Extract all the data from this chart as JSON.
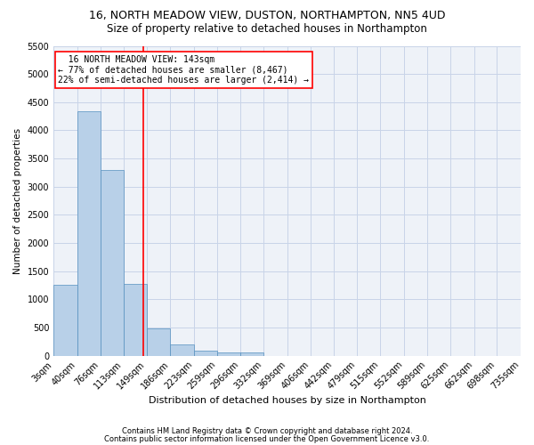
{
  "title": "16, NORTH MEADOW VIEW, DUSTON, NORTHAMPTON, NN5 4UD",
  "subtitle": "Size of property relative to detached houses in Northampton",
  "xlabel": "Distribution of detached houses by size in Northampton",
  "ylabel": "Number of detached properties",
  "bin_labels": [
    "3sqm",
    "40sqm",
    "76sqm",
    "113sqm",
    "149sqm",
    "186sqm",
    "223sqm",
    "259sqm",
    "296sqm",
    "332sqm",
    "369sqm",
    "406sqm",
    "442sqm",
    "479sqm",
    "515sqm",
    "552sqm",
    "589sqm",
    "625sqm",
    "662sqm",
    "698sqm",
    "735sqm"
  ],
  "bar_values": [
    1260,
    4340,
    3300,
    1280,
    490,
    200,
    85,
    60,
    50,
    0,
    0,
    0,
    0,
    0,
    0,
    0,
    0,
    0,
    0,
    0
  ],
  "bar_color": "#b8d0e8",
  "bar_edge_color": "#5590bf",
  "property_line_x": 143,
  "bin_edges": [
    3,
    40,
    76,
    113,
    149,
    186,
    223,
    259,
    296,
    332,
    369,
    406,
    442,
    479,
    515,
    552,
    589,
    625,
    662,
    698,
    735
  ],
  "ylim": [
    0,
    5500
  ],
  "yticks": [
    0,
    500,
    1000,
    1500,
    2000,
    2500,
    3000,
    3500,
    4000,
    4500,
    5000,
    5500
  ],
  "annotation_line1": "  16 NORTH MEADOW VIEW: 143sqm",
  "annotation_line2": "← 77% of detached houses are smaller (8,467)",
  "annotation_line3": "22% of semi-detached houses are larger (2,414) →",
  "footer1": "Contains HM Land Registry data © Crown copyright and database right 2024.",
  "footer2": "Contains public sector information licensed under the Open Government Licence v3.0.",
  "bg_color": "#eef2f8",
  "grid_color": "#c8d4e8",
  "title_fontsize": 9,
  "subtitle_fontsize": 8.5,
  "xlabel_fontsize": 8,
  "ylabel_fontsize": 7.5,
  "tick_fontsize": 7,
  "footer_fontsize": 6,
  "annot_fontsize": 7
}
